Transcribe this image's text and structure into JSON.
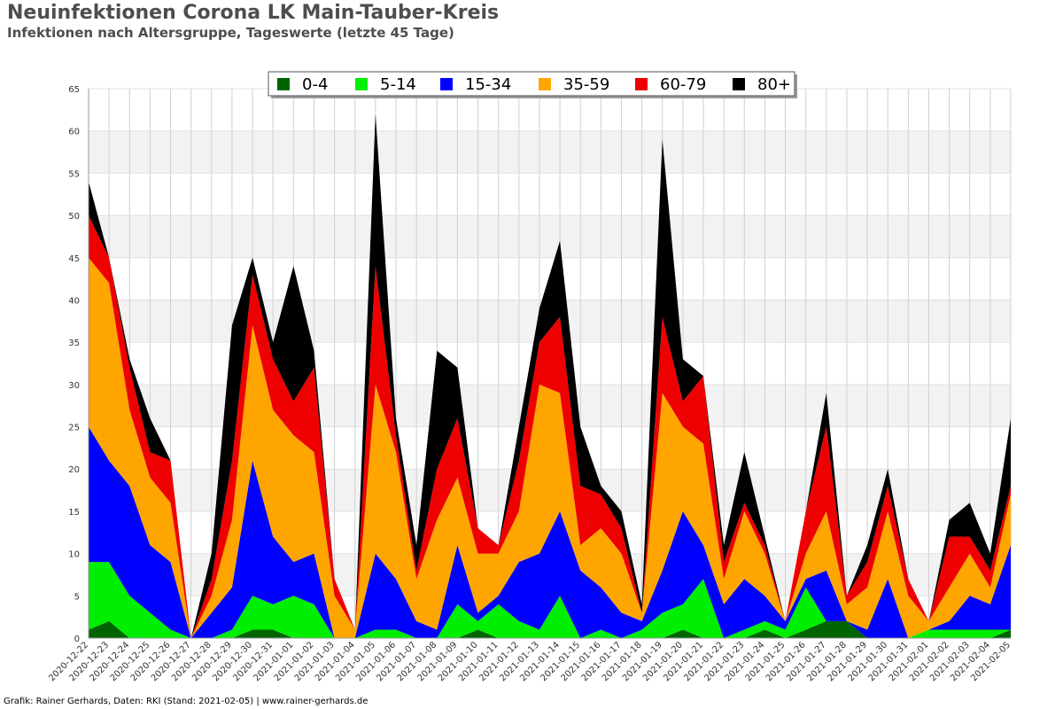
{
  "title": "Neuinfektionen Corona LK Main-Tauber-Kreis",
  "subtitle": "Infektionen nach Altersgruppe, Tageswerte (letzte 45 Tage)",
  "footer": "Grafik: Rainer Gerhards, Daten: RKI (Stand: 2021-02-05) | www.rainer-gerhards.de",
  "chart_data": {
    "type": "area",
    "stacked": true,
    "ylim": [
      0,
      65
    ],
    "ytick_step": 5,
    "grid": true,
    "legend_position": "top-center",
    "categories": [
      "2020-12-22",
      "2020-12-23",
      "2020-12-24",
      "2020-12-25",
      "2020-12-26",
      "2020-12-27",
      "2020-12-28",
      "2020-12-29",
      "2020-12-30",
      "2020-12-31",
      "2021-01-01",
      "2021-01-02",
      "2021-01-03",
      "2021-01-04",
      "2021-01-05",
      "2021-01-06",
      "2021-01-07",
      "2021-01-08",
      "2021-01-09",
      "2021-01-10",
      "2021-01-11",
      "2021-01-12",
      "2021-01-13",
      "2021-01-14",
      "2021-01-15",
      "2021-01-16",
      "2021-01-17",
      "2021-01-18",
      "2021-01-19",
      "2021-01-20",
      "2021-01-21",
      "2021-01-22",
      "2021-01-23",
      "2021-01-24",
      "2021-01-25",
      "2021-01-26",
      "2021-01-27",
      "2021-01-28",
      "2021-01-29",
      "2021-01-30",
      "2021-01-31",
      "2021-02-01",
      "2021-02-02",
      "2021-02-03",
      "2021-02-04",
      "2021-02-05"
    ],
    "series": [
      {
        "name": "0-4",
        "color": "#006400",
        "values": [
          1,
          2,
          0,
          0,
          0,
          0,
          0,
          0,
          1,
          1,
          0,
          0,
          0,
          0,
          0,
          0,
          0,
          0,
          0,
          1,
          0,
          0,
          0,
          0,
          0,
          0,
          0,
          0,
          0,
          1,
          0,
          0,
          0,
          1,
          0,
          1,
          2,
          2,
          0,
          0,
          0,
          0,
          0,
          0,
          0,
          1
        ]
      },
      {
        "name": "5-14",
        "color": "#00ee00",
        "values": [
          8,
          7,
          5,
          3,
          1,
          0,
          0,
          1,
          4,
          3,
          5,
          4,
          0,
          0,
          1,
          1,
          0,
          0,
          4,
          1,
          4,
          2,
          1,
          5,
          0,
          1,
          0,
          1,
          3,
          3,
          7,
          0,
          1,
          1,
          1,
          5,
          0,
          0,
          0,
          0,
          0,
          1,
          1,
          1,
          1,
          0
        ]
      },
      {
        "name": "15-34",
        "color": "#0000ff",
        "values": [
          16,
          12,
          13,
          8,
          8,
          0,
          3,
          5,
          16,
          8,
          4,
          6,
          0,
          0,
          9,
          6,
          2,
          1,
          7,
          1,
          1,
          7,
          9,
          10,
          8,
          5,
          3,
          1,
          5,
          11,
          4,
          4,
          6,
          3,
          1,
          1,
          6,
          0,
          1,
          7,
          0,
          0,
          1,
          4,
          3,
          10
        ]
      },
      {
        "name": "35-59",
        "color": "#ffa500",
        "values": [
          20,
          21,
          9,
          8,
          7,
          0,
          2,
          8,
          16,
          15,
          15,
          12,
          5,
          1,
          20,
          15,
          5,
          13,
          8,
          7,
          5,
          6,
          20,
          14,
          3,
          7,
          7,
          1,
          21,
          10,
          12,
          3,
          8,
          5,
          0,
          3,
          7,
          2,
          5,
          8,
          5,
          1,
          4,
          5,
          2,
          6
        ]
      },
      {
        "name": "60-79",
        "color": "#ee0000",
        "values": [
          5,
          3,
          5,
          3,
          5,
          0,
          2,
          7,
          6,
          6,
          4,
          10,
          2,
          0,
          14,
          2,
          1,
          6,
          7,
          3,
          1,
          6,
          5,
          9,
          7,
          4,
          3,
          0,
          9,
          3,
          8,
          2,
          1,
          1,
          0,
          5,
          10,
          1,
          3,
          3,
          2,
          0,
          6,
          2,
          2,
          1
        ]
      },
      {
        "name": "80+",
        "color": "#000000",
        "values": [
          4,
          0,
          1,
          4,
          0,
          0,
          3,
          16,
          2,
          2,
          16,
          2,
          0,
          0,
          18,
          2,
          3,
          14,
          6,
          0,
          0,
          4,
          4,
          9,
          7,
          1,
          2,
          1,
          21,
          5,
          0,
          2,
          6,
          1,
          0,
          0,
          4,
          0,
          2,
          2,
          0,
          0,
          2,
          4,
          2,
          8
        ]
      }
    ]
  }
}
